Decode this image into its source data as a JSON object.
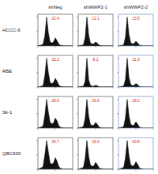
{
  "figure": {
    "columns": [
      "shNeg",
      "shWWP2-1",
      "shWWP2-2"
    ],
    "rows": [
      "HCCC-9",
      "RBE",
      "Sk-1",
      "QBC939"
    ]
  },
  "chart_data": [
    {
      "type": "area",
      "x": [
        0,
        50,
        100,
        150,
        200,
        250,
        300,
        350,
        400,
        450,
        500,
        550,
        600,
        650,
        700,
        750,
        800,
        850,
        900,
        950,
        1000
      ],
      "values": [
        0,
        2,
        3,
        6,
        35,
        100,
        45,
        14,
        10,
        14,
        28,
        18,
        6,
        2,
        1,
        0,
        0,
        0,
        0,
        0,
        0
      ],
      "xlim": [
        0,
        1000
      ],
      "ylim": [
        0,
        110
      ],
      "xticks": [
        0,
        500,
        1000
      ],
      "yticks": [
        0,
        50,
        100
      ],
      "tick_labels": false,
      "color": "#111111",
      "annotation": "22.4"
    },
    {
      "type": "area",
      "x": [
        0,
        50,
        100,
        150,
        200,
        250,
        300,
        350,
        400,
        450,
        500,
        550,
        600,
        650,
        700,
        750,
        800,
        850,
        900,
        950,
        1000
      ],
      "values": [
        0,
        1,
        2,
        4,
        28,
        100,
        38,
        10,
        6,
        7,
        14,
        9,
        3,
        1,
        0,
        0,
        0,
        0,
        0,
        0,
        0
      ],
      "xlim": [
        0,
        1000
      ],
      "ylim": [
        0,
        110
      ],
      "xticks": [
        0,
        500,
        1000
      ],
      "yticks": [
        0,
        50,
        100
      ],
      "tick_labels": false,
      "color": "#111111",
      "annotation": "12.1"
    },
    {
      "type": "area",
      "x": [
        0,
        50,
        100,
        150,
        200,
        250,
        300,
        350,
        400,
        450,
        500,
        550,
        600,
        650,
        700,
        750,
        800,
        850,
        900,
        950,
        1000
      ],
      "values": [
        0,
        1,
        2,
        4,
        30,
        100,
        40,
        11,
        7,
        8,
        16,
        10,
        3,
        1,
        0,
        0,
        0,
        0,
        0,
        0,
        0
      ],
      "xlim": [
        0,
        1000
      ],
      "ylim": [
        0,
        110
      ],
      "xticks": [
        0,
        500,
        1000
      ],
      "yticks": [
        0,
        50,
        100
      ],
      "tick_labels": false,
      "color": "#111111",
      "annotation": "13.5"
    },
    {
      "type": "area",
      "x": [
        0,
        50,
        100,
        150,
        200,
        250,
        300,
        350,
        400,
        450,
        500,
        550,
        600,
        650,
        700,
        750,
        800,
        850,
        900,
        950,
        1000
      ],
      "values": [
        0,
        1,
        3,
        5,
        40,
        100,
        50,
        16,
        12,
        16,
        30,
        20,
        7,
        2,
        1,
        0,
        0,
        0,
        0,
        0,
        0
      ],
      "xlim": [
        0,
        1000
      ],
      "ylim": [
        0,
        110
      ],
      "xticks": [
        0,
        500,
        1000
      ],
      "yticks": [
        0,
        50,
        100
      ],
      "tick_labels": false,
      "color": "#111111",
      "annotation": "25.3"
    },
    {
      "type": "area",
      "x": [
        0,
        50,
        100,
        150,
        200,
        250,
        300,
        350,
        400,
        450,
        500,
        550,
        600,
        650,
        700,
        750,
        800,
        850,
        900,
        950,
        1000
      ],
      "values": [
        0,
        1,
        2,
        3,
        20,
        100,
        25,
        6,
        3,
        3,
        6,
        4,
        1,
        0,
        0,
        0,
        0,
        0,
        0,
        0,
        0
      ],
      "xlim": [
        0,
        1000
      ],
      "ylim": [
        0,
        110
      ],
      "xticks": [
        0,
        500,
        1000
      ],
      "yticks": [
        0,
        50,
        100
      ],
      "tick_labels": false,
      "color": "#111111",
      "annotation": "8.2"
    },
    {
      "type": "area",
      "x": [
        0,
        50,
        100,
        150,
        200,
        250,
        300,
        350,
        400,
        450,
        500,
        550,
        600,
        650,
        700,
        750,
        800,
        850,
        900,
        950,
        1000
      ],
      "values": [
        0,
        1,
        2,
        4,
        26,
        100,
        34,
        9,
        5,
        6,
        12,
        8,
        2,
        1,
        0,
        0,
        0,
        0,
        0,
        0,
        0
      ],
      "xlim": [
        0,
        1000
      ],
      "ylim": [
        0,
        110
      ],
      "xticks": [
        0,
        500,
        1000
      ],
      "yticks": [
        0,
        50,
        100
      ],
      "tick_labels": false,
      "color": "#111111",
      "annotation": "11.0"
    },
    {
      "type": "area",
      "x": [
        0,
        50,
        100,
        150,
        200,
        250,
        300,
        350,
        400,
        450,
        500,
        550,
        600,
        650,
        700,
        750,
        800,
        850,
        900,
        950,
        1000
      ],
      "values": [
        0,
        2,
        4,
        8,
        45,
        100,
        55,
        20,
        15,
        18,
        35,
        25,
        8,
        3,
        1,
        0,
        0,
        0,
        0,
        0,
        0
      ],
      "xlim": [
        0,
        1000
      ],
      "ylim": [
        0,
        110
      ],
      "xticks": [
        0,
        500,
        1000
      ],
      "yticks": [
        0,
        50,
        100
      ],
      "tick_labels": false,
      "color": "#111111",
      "annotation": "28.6"
    },
    {
      "type": "area",
      "x": [
        0,
        50,
        100,
        150,
        200,
        250,
        300,
        350,
        400,
        450,
        500,
        550,
        600,
        650,
        700,
        750,
        800,
        850,
        900,
        950,
        1000
      ],
      "values": [
        0,
        2,
        3,
        6,
        34,
        100,
        42,
        13,
        9,
        10,
        20,
        13,
        4,
        1,
        0,
        0,
        0,
        0,
        0,
        0,
        0
      ],
      "xlim": [
        0,
        1000
      ],
      "ylim": [
        0,
        110
      ],
      "xticks": [
        0,
        500,
        1000
      ],
      "yticks": [
        0,
        50,
        100
      ],
      "tick_labels": false,
      "color": "#111111",
      "annotation": "16.9"
    },
    {
      "type": "area",
      "x": [
        0,
        50,
        100,
        150,
        200,
        250,
        300,
        350,
        400,
        450,
        500,
        550,
        600,
        650,
        700,
        750,
        800,
        850,
        900,
        950,
        1000
      ],
      "values": [
        0,
        2,
        3,
        6,
        36,
        100,
        44,
        14,
        9,
        11,
        22,
        14,
        4,
        1,
        0,
        0,
        0,
        0,
        0,
        0,
        0
      ],
      "xlim": [
        0,
        1000
      ],
      "ylim": [
        0,
        110
      ],
      "xticks": [
        0,
        500,
        1000
      ],
      "yticks": [
        0,
        50,
        100
      ],
      "tick_labels": false,
      "color": "#111111",
      "annotation": "18.2"
    },
    {
      "type": "area",
      "x": [
        0,
        50,
        100,
        150,
        200,
        250,
        300,
        350,
        400,
        450,
        500,
        550,
        600,
        650,
        700,
        750,
        800,
        850,
        900,
        950,
        1000
      ],
      "values": [
        0,
        3,
        5,
        10,
        50,
        100,
        60,
        22,
        18,
        22,
        40,
        28,
        10,
        3,
        1,
        0,
        0,
        0,
        0,
        0,
        0
      ],
      "xlim": [
        0,
        1000
      ],
      "ylim": [
        0,
        110
      ],
      "xticks": [
        0,
        500,
        1000
      ],
      "yticks": [
        0,
        50,
        100
      ],
      "tick_labels": false,
      "color": "#111111",
      "annotation": "30.7"
    },
    {
      "type": "area",
      "x": [
        0,
        50,
        100,
        150,
        200,
        250,
        300,
        350,
        400,
        450,
        500,
        550,
        600,
        650,
        700,
        750,
        800,
        850,
        900,
        950,
        1000
      ],
      "values": [
        0,
        2,
        4,
        7,
        38,
        100,
        46,
        15,
        10,
        12,
        24,
        16,
        5,
        2,
        1,
        0,
        0,
        0,
        0,
        0,
        0
      ],
      "xlim": [
        0,
        1000
      ],
      "ylim": [
        0,
        110
      ],
      "xticks": [
        0,
        500,
        1000
      ],
      "yticks": [
        0,
        50,
        100
      ],
      "tick_labels": false,
      "color": "#111111",
      "annotation": "19.4"
    },
    {
      "type": "area",
      "x": [
        0,
        50,
        100,
        150,
        200,
        250,
        300,
        350,
        400,
        450,
        500,
        550,
        600,
        650,
        700,
        750,
        800,
        850,
        900,
        950,
        1000
      ],
      "values": [
        0,
        2,
        4,
        7,
        40,
        100,
        48,
        16,
        11,
        13,
        26,
        17,
        5,
        2,
        1,
        0,
        0,
        0,
        0,
        0,
        0
      ],
      "xlim": [
        0,
        1000
      ],
      "ylim": [
        0,
        110
      ],
      "xticks": [
        0,
        500,
        1000
      ],
      "yticks": [
        0,
        50,
        100
      ],
      "tick_labels": false,
      "color": "#111111",
      "annotation": "20.8"
    }
  ]
}
